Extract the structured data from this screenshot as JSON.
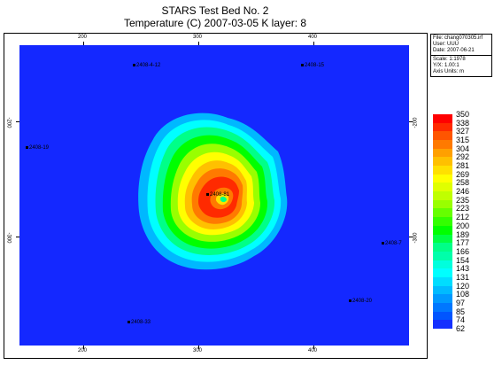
{
  "header": {
    "title": "STARS Test Bed No. 2",
    "subtitle": "Temperature (C) 2007-03-05    K layer: 8"
  },
  "info_box": {
    "file": "File: chang070305.irf",
    "user": "User: UUU",
    "date": "Date: 2007-06-21",
    "scale": "Scale: 1:1978",
    "yx": "Y/X: 1.00:1",
    "axis_units": "Axis Units: m"
  },
  "axes": {
    "top": [
      "200",
      "300",
      "400"
    ],
    "bottom": [
      "200",
      "300",
      "400"
    ],
    "left": [
      "-200",
      "-300"
    ],
    "right": [
      "-200",
      "-300"
    ]
  },
  "wells": [
    {
      "label": "2408-4-12"
    },
    {
      "label": "2408-15"
    },
    {
      "label": "2408-19"
    },
    {
      "label": "2408-81"
    },
    {
      "label": "2408-7"
    },
    {
      "label": "2408-20"
    },
    {
      "label": "2408-33"
    }
  ],
  "legend": {
    "labels": [
      "350",
      "338",
      "327",
      "315",
      "304",
      "292",
      "281",
      "269",
      "258",
      "246",
      "235",
      "223",
      "212",
      "200",
      "189",
      "177",
      "166",
      "154",
      "143",
      "131",
      "120",
      "108",
      "97",
      "85",
      "74",
      "62"
    ],
    "colors": [
      "#ff0000",
      "#ff2a00",
      "#ff5500",
      "#ff7a00",
      "#ffa000",
      "#ffc000",
      "#ffe000",
      "#ffff00",
      "#e0ff00",
      "#c0ff00",
      "#99ff00",
      "#66ff00",
      "#33ff00",
      "#00ff00",
      "#00ff44",
      "#00ff88",
      "#00ffaa",
      "#00ffdd",
      "#00ffff",
      "#00ddff",
      "#00bbff",
      "#0099ff",
      "#0077ff",
      "#0055ff",
      "#1430ff"
    ]
  },
  "map": {
    "background_color": "#1428ff"
  }
}
